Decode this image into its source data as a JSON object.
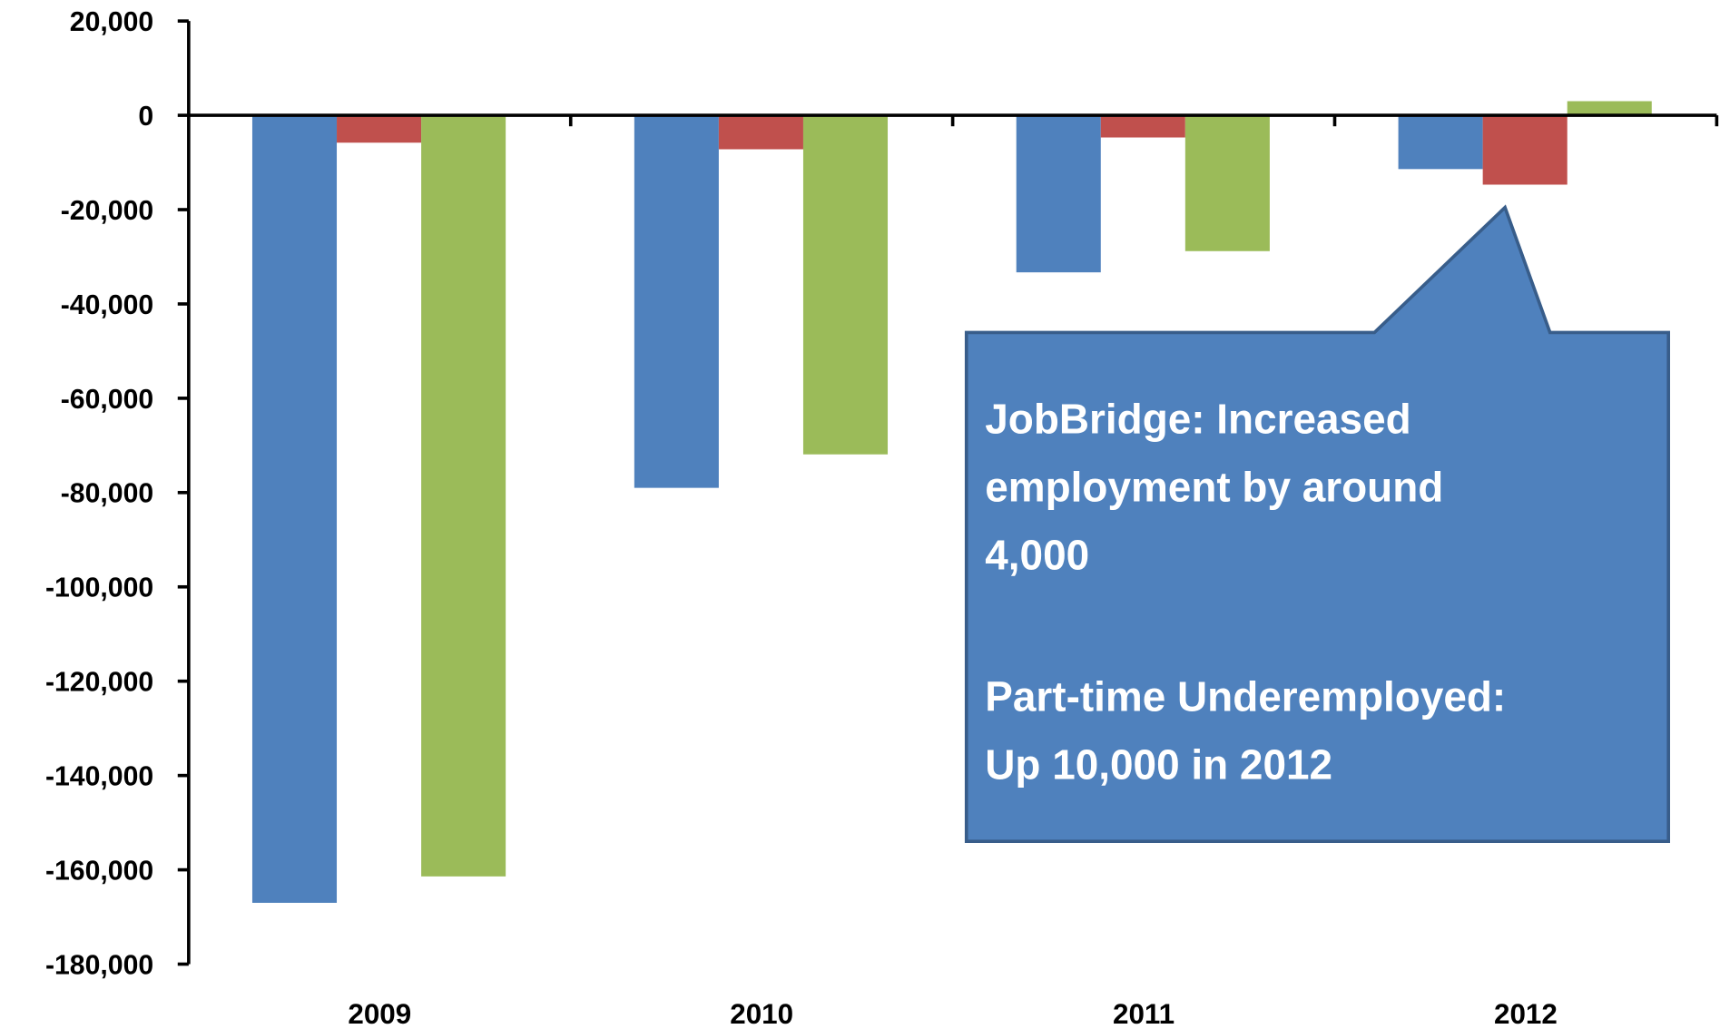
{
  "chart_data": {
    "type": "bar",
    "categories": [
      "2009",
      "2010",
      "2011",
      "2012"
    ],
    "series": [
      {
        "color": "#4f81bd",
        "values": [
          -167000,
          -79000,
          -33300,
          -11400
        ]
      },
      {
        "color": "#c0504d",
        "values": [
          -5800,
          -7200,
          -4700,
          -14700
        ]
      },
      {
        "color": "#9bbb59",
        "values": [
          -161400,
          -71900,
          -28800,
          3000
        ]
      }
    ],
    "ylim": [
      -180000,
      20000
    ],
    "yticks": [
      {
        "value": -180000,
        "label": "-180,000"
      },
      {
        "value": -160000,
        "label": "-160,000"
      },
      {
        "value": -140000,
        "label": "-140,000"
      },
      {
        "value": -120000,
        "label": "-120,000"
      },
      {
        "value": -100000,
        "label": "-100,000"
      },
      {
        "value": -80000,
        "label": "-80,000"
      },
      {
        "value": -60000,
        "label": "-60,000"
      },
      {
        "value": -40000,
        "label": "-40,000"
      },
      {
        "value": -20000,
        "label": "-20,000"
      },
      0,
      {
        "value": 20000,
        "label": "20,000"
      }
    ],
    "grid": false,
    "annotations": [
      [
        "JobBridge: Increased",
        "employment by around",
        "4,000"
      ],
      [
        "Part-time Underemployed:",
        "Up 10,000 in 2012"
      ]
    ]
  }
}
